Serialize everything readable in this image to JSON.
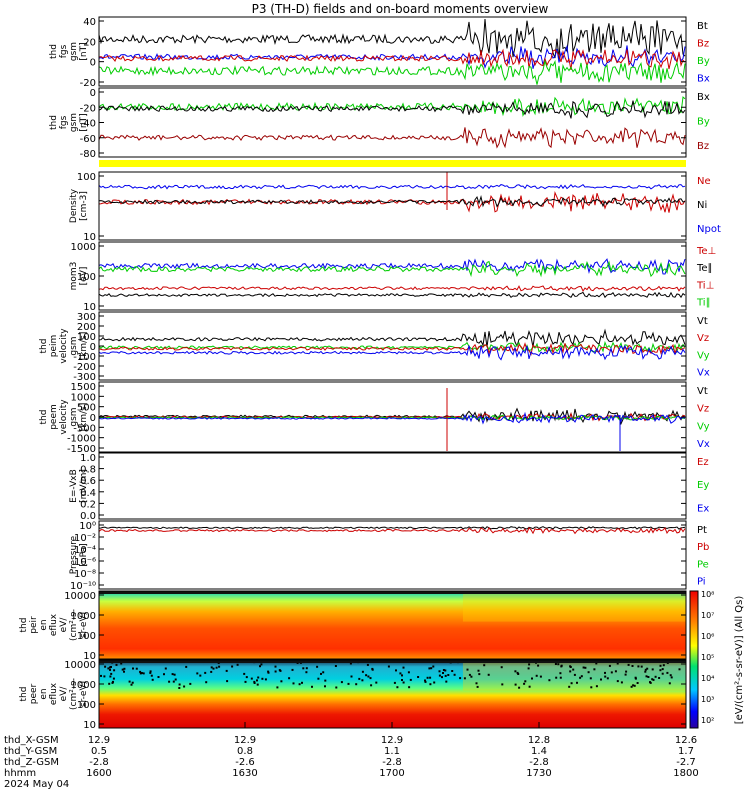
{
  "title": "P3 (TH-D) fields and on-board moments overview",
  "chart_data": {
    "type": "line",
    "title": "P3 (TH-D) fields and on-board moments overview",
    "x_ticks": [
      "1600",
      "1630",
      "1700",
      "1730",
      "1800"
    ],
    "ephemeris": [
      {
        "label": "thd_X-GSM",
        "values": [
          "12.9",
          "12.9",
          "12.9",
          "12.8",
          "12.6"
        ]
      },
      {
        "label": "thd_Y-GSM",
        "values": [
          "0.5",
          "0.8",
          "1.1",
          "1.4",
          "1.7"
        ]
      },
      {
        "label": "thd_Z-GSM",
        "values": [
          "-2.8",
          "-2.6",
          "-2.8",
          "-2.8",
          "-2.7"
        ]
      },
      {
        "label": "hhmm",
        "values": [
          "1600",
          "1630",
          "1700",
          "1730",
          "1800"
        ]
      }
    ],
    "date": "2024 May 04",
    "colorbar_label": "[eV/(cm²-s-sr-eV)] (All Qs)",
    "colorbar_ticks": [
      "10⁸",
      "10⁷",
      "10⁶",
      "10⁵",
      "10⁴",
      "10³",
      "10²"
    ],
    "panels": [
      {
        "ylabel": [
          "thd",
          "fgs",
          "gsm",
          "[nT]"
        ],
        "yticks": [
          "40",
          "20",
          "0",
          "-20"
        ],
        "legend": [
          {
            "name": "Bt",
            "color": "#000000"
          },
          {
            "name": "Bz",
            "color": "#cc0000"
          },
          {
            "name": "By",
            "color": "#00cc00"
          },
          {
            "name": "Bx",
            "color": "#0000ee"
          }
        ]
      },
      {
        "ylabel": [
          "thd",
          "fgs",
          "gsm",
          "[nT]"
        ],
        "yticks": [
          "0",
          "-20",
          "-40",
          "-60",
          "-80"
        ],
        "legend": [
          {
            "name": "Bx",
            "color": "#000000"
          },
          {
            "name": "By",
            "color": "#00cc00"
          },
          {
            "name": "Bz",
            "color": "#990000"
          }
        ]
      },
      {
        "ylabel": [
          "Density",
          "[cm-3]"
        ],
        "yticks": [
          "100",
          "10"
        ],
        "legend": [
          {
            "name": "Ne",
            "color": "#cc0000"
          },
          {
            "name": "Ni",
            "color": "#000000"
          },
          {
            "name": "Npot",
            "color": "#0000ee"
          }
        ]
      },
      {
        "ylabel": [
          "mom3",
          "[eV]"
        ],
        "yticks": [
          "1000",
          "100",
          "10"
        ],
        "legend": [
          {
            "name": "Te⊥",
            "color": "#cc0000"
          },
          {
            "name": "Te∥",
            "color": "#000000"
          },
          {
            "name": "Ti⊥",
            "color": "#cc0000"
          },
          {
            "name": "Ti∥",
            "color": "#00cc00"
          }
        ]
      },
      {
        "ylabel": [
          "thd",
          "peim",
          "velocity",
          "gsm",
          "[km/s]"
        ],
        "yticks": [
          "300",
          "200",
          "100",
          "0",
          "-100",
          "-200",
          "-300"
        ],
        "legend": [
          {
            "name": "Vt",
            "color": "#000000"
          },
          {
            "name": "Vz",
            "color": "#cc0000"
          },
          {
            "name": "Vy",
            "color": "#00cc00"
          },
          {
            "name": "Vx",
            "color": "#0000ee"
          }
        ]
      },
      {
        "ylabel": [
          "thd",
          "peem",
          "velocity",
          "gsm",
          "[km/s]"
        ],
        "yticks": [
          "1500",
          "1000",
          "500",
          "0",
          "-500",
          "-1000",
          "-1500"
        ],
        "legend": [
          {
            "name": "Vt",
            "color": "#000000"
          },
          {
            "name": "Vz",
            "color": "#cc0000"
          },
          {
            "name": "Vy",
            "color": "#00cc00"
          },
          {
            "name": "Vx",
            "color": "#0000ee"
          }
        ]
      },
      {
        "ylabel": [
          "E=-VxB",
          "[mV/m]"
        ],
        "yticks": [
          "1.0",
          "0.8",
          "0.6",
          "0.4",
          "0.2",
          "0.0"
        ],
        "legend": [
          {
            "name": "Ez",
            "color": "#cc0000"
          },
          {
            "name": "Ey",
            "color": "#00cc00"
          },
          {
            "name": "Ex",
            "color": "#0000ee"
          }
        ]
      },
      {
        "ylabel": [
          "Pressure",
          "[nPa]"
        ],
        "yticks": [
          "10⁰",
          "10⁻²",
          "10⁻⁴",
          "10⁻⁶",
          "10⁻⁸",
          "10⁻¹⁰"
        ],
        "legend": [
          {
            "name": "Pt",
            "color": "#000000"
          },
          {
            "name": "Pb",
            "color": "#cc0000"
          },
          {
            "name": "Pe",
            "color": "#00cc00"
          },
          {
            "name": "Pi",
            "color": "#0000ee"
          }
        ]
      },
      {
        "ylabel": [
          "thd",
          "peir",
          "en",
          "eflux",
          "eV/",
          "(cm²-s-",
          "sr-eV)"
        ],
        "yticks": [
          "10000",
          "1000",
          "100",
          "10"
        ],
        "legend": []
      },
      {
        "ylabel": [
          "thd",
          "peer",
          "en",
          "eflux",
          "eV/",
          "(cm²-s-",
          "sr-eV)"
        ],
        "yticks": [
          "10000",
          "1000",
          "100",
          "10"
        ],
        "legend": []
      }
    ]
  }
}
